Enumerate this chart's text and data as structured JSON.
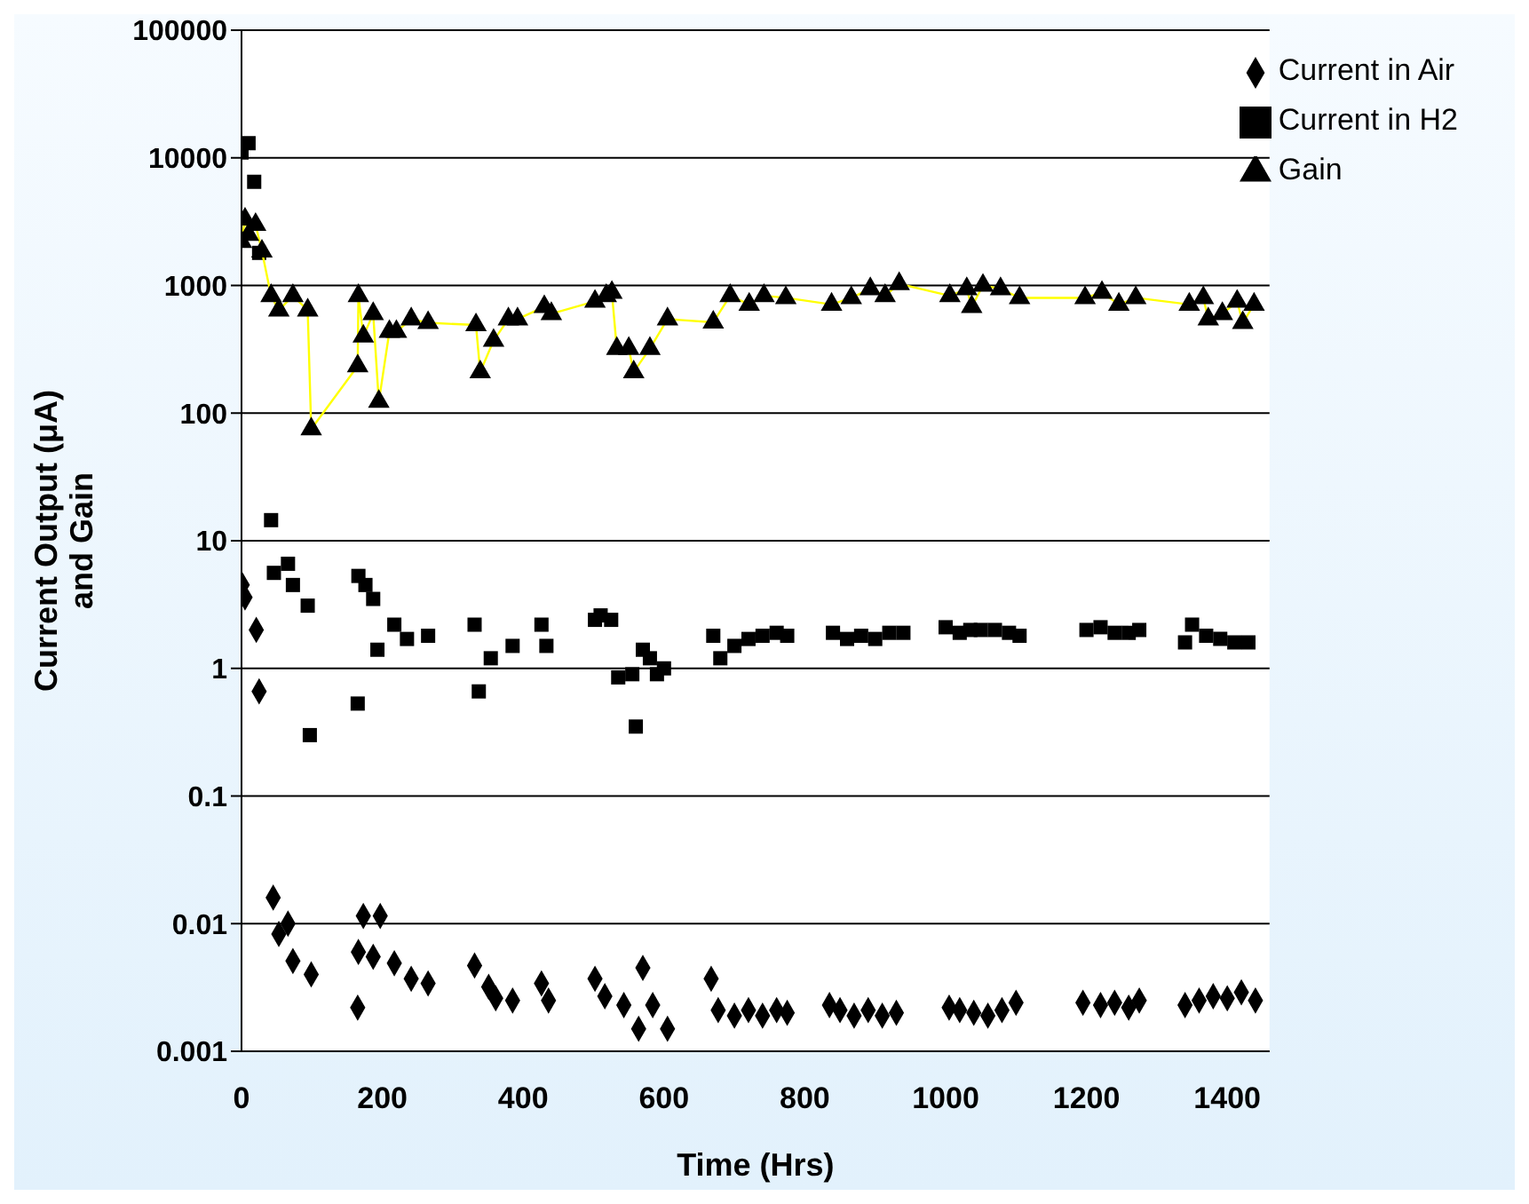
{
  "chart_data": {
    "type": "scatter",
    "xlabel": "Time (Hrs)",
    "ylabel": "Current Output (μA)\nand Gain",
    "xlim": [
      0,
      1460
    ],
    "xticks": [
      0,
      200,
      400,
      600,
      800,
      1000,
      1200,
      1400
    ],
    "ylim": [
      0.001,
      100000
    ],
    "yticks": [
      0.001,
      0.01,
      0.1,
      1,
      10,
      100,
      1000,
      10000,
      100000
    ],
    "log": "y",
    "grid": "y",
    "legend": "top right",
    "series": [
      {
        "name": "Current in Air",
        "type": "scatter",
        "marker": "diamond",
        "color": "#000000",
        "x": [
          1,
          5,
          21,
          25,
          45,
          53,
          66,
          73,
          99,
          165,
          166,
          173,
          187,
          197,
          217,
          241,
          265,
          331,
          351,
          361,
          385,
          426,
          436,
          502,
          516,
          543,
          564,
          570,
          584,
          605,
          667,
          677,
          700,
          720,
          740,
          760,
          775,
          835,
          850,
          870,
          890,
          910,
          930,
          1005,
          1020,
          1040,
          1060,
          1080,
          1100,
          1195,
          1220,
          1240,
          1260,
          1275,
          1340,
          1360,
          1380,
          1400,
          1420,
          1440
        ],
        "values": [
          4.5,
          3.6,
          2.0,
          0.66,
          0.016,
          0.0083,
          0.01,
          0.0051,
          0.004,
          0.0022,
          0.006,
          0.0115,
          0.0055,
          0.0115,
          0.0049,
          0.0037,
          0.0034,
          0.0047,
          0.0032,
          0.0026,
          0.0025,
          0.0034,
          0.0025,
          0.0037,
          0.0027,
          0.0023,
          0.0015,
          0.0045,
          0.0023,
          0.0015,
          0.0037,
          0.0021,
          0.0019,
          0.0021,
          0.0019,
          0.0021,
          0.002,
          0.0023,
          0.0021,
          0.0019,
          0.0021,
          0.0019,
          0.002,
          0.0022,
          0.0021,
          0.002,
          0.0019,
          0.0021,
          0.0024,
          0.0024,
          0.0023,
          0.0024,
          0.0022,
          0.0025,
          0.0023,
          0.0025,
          0.0027,
          0.0026,
          0.0029,
          0.0025
        ]
      },
      {
        "name": "Current in H2",
        "type": "scatter",
        "marker": "square",
        "color": "#000000",
        "x": [
          0,
          10,
          18,
          25,
          42,
          46,
          66,
          73,
          94,
          97,
          165,
          166,
          176,
          187,
          193,
          217,
          235,
          265,
          331,
          337,
          354,
          385,
          426,
          433,
          502,
          510,
          525,
          535,
          555,
          560,
          570,
          580,
          590,
          600,
          670,
          680,
          700,
          720,
          740,
          760,
          775,
          840,
          860,
          880,
          900,
          920,
          940,
          1000,
          1020,
          1035,
          1050,
          1070,
          1090,
          1105,
          1200,
          1220,
          1240,
          1260,
          1275,
          1340,
          1350,
          1370,
          1390,
          1410,
          1430
        ],
        "values": [
          11000,
          13000,
          6500,
          1800,
          14.5,
          5.6,
          6.6,
          4.5,
          3.1,
          0.3,
          0.53,
          5.3,
          4.5,
          3.5,
          1.4,
          2.2,
          1.7,
          1.8,
          2.2,
          0.66,
          1.2,
          1.5,
          2.2,
          1.5,
          2.4,
          2.6,
          2.4,
          0.85,
          0.9,
          0.35,
          1.4,
          1.2,
          0.9,
          1.0,
          1.8,
          1.2,
          1.5,
          1.7,
          1.8,
          1.9,
          1.8,
          1.9,
          1.7,
          1.8,
          1.7,
          1.9,
          1.9,
          2.1,
          1.9,
          2.0,
          2.0,
          2.0,
          1.9,
          1.8,
          2.0,
          2.1,
          1.9,
          1.9,
          2.0,
          1.6,
          2.2,
          1.8,
          1.7,
          1.6,
          1.6
        ]
      },
      {
        "name": "Gain",
        "type": "line",
        "marker": "triangle",
        "color": "#ffff00",
        "x": [
          0,
          5,
          10,
          20,
          29,
          42,
          53,
          73,
          94,
          99,
          165,
          166,
          173,
          187,
          195,
          210,
          220,
          241,
          265,
          333,
          339,
          358,
          379,
          392,
          430,
          440,
          502,
          518,
          526,
          533,
          550,
          557,
          580,
          605,
          670,
          694,
          721,
          742,
          773,
          838,
          866,
          893,
          914,
          934,
          1006,
          1030,
          1037,
          1053,
          1078,
          1105,
          1198,
          1222,
          1246,
          1270,
          1346,
          1366,
          1373,
          1393,
          1414,
          1422,
          1438
        ],
        "values": [
          2200,
          3300,
          2500,
          3000,
          1850,
          830,
          640,
          830,
          640,
          75,
          234,
          830,
          400,
          600,
          123,
          435,
          435,
          545,
          510,
          490,
          210,
          370,
          545,
          545,
          680,
          600,
          750,
          830,
          880,
          320,
          320,
          210,
          320,
          545,
          515,
          830,
          710,
          830,
          800,
          710,
          800,
          940,
          830,
          1030,
          830,
          940,
          680,
          1000,
          940,
          800,
          800,
          880,
          710,
          800,
          710,
          800,
          545,
          600,
          750,
          510,
          710
        ]
      }
    ]
  }
}
